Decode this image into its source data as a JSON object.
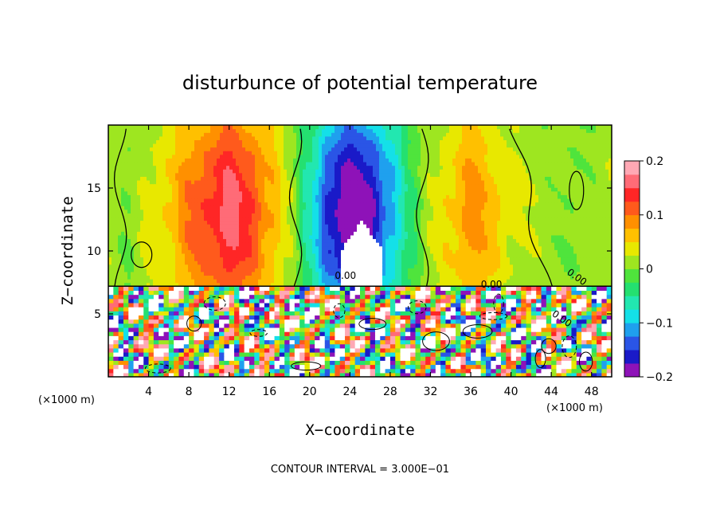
{
  "chart_data": {
    "type": "heatmap",
    "title": "disturbunce of potential temperature",
    "xlabel": "X−coordinate",
    "ylabel": "Z−coordinate",
    "x_unit": "(×1000 m)",
    "x_unit_right": "(×1000 m)",
    "xlim": [
      0,
      50
    ],
    "ylim": [
      0,
      20
    ],
    "xticks": [
      4,
      8,
      12,
      16,
      20,
      24,
      28,
      32,
      36,
      40,
      44,
      48
    ],
    "yticks": [
      5,
      10,
      15
    ],
    "colorbar": {
      "range": [
        -0.2,
        0.2
      ],
      "ticks": [
        0.2,
        0.1,
        0,
        -0.1,
        -0.2
      ],
      "tick_labels": [
        "0.2",
        "0.1",
        "0",
        "−0.1",
        "−0.2"
      ],
      "colors": [
        "#8e12b8",
        "#1a1ac8",
        "#2a55e6",
        "#1fa0ee",
        "#14e0e8",
        "#22e7b0",
        "#24e070",
        "#4fe43c",
        "#9ee620",
        "#e8e800",
        "#ffc000",
        "#ff9000",
        "#ff5a1c",
        "#ff2626",
        "#ff6b77",
        "#ffa8b4"
      ]
    },
    "contour_labels": [
      "0.00",
      "0.00",
      "0.00",
      "0.00"
    ],
    "contour_interval_text": "CONTOUR INTERVAL = 3.000E−01",
    "field_upper": {
      "description_free": true,
      "x": [
        0,
        2,
        4,
        6,
        8,
        10,
        12,
        14,
        16,
        18,
        20,
        22,
        24,
        26,
        28,
        30,
        32,
        34,
        36,
        38,
        40,
        42,
        44,
        46,
        48,
        50
      ],
      "value": [
        0.02,
        0.0,
        0.03,
        0.05,
        0.09,
        0.12,
        0.15,
        0.12,
        0.07,
        0.02,
        -0.06,
        -0.15,
        -0.19,
        -0.17,
        -0.1,
        -0.03,
        0.02,
        0.05,
        0.08,
        0.06,
        0.03,
        0.02,
        0.01,
        0.0,
        0.01,
        0.02
      ]
    }
  }
}
